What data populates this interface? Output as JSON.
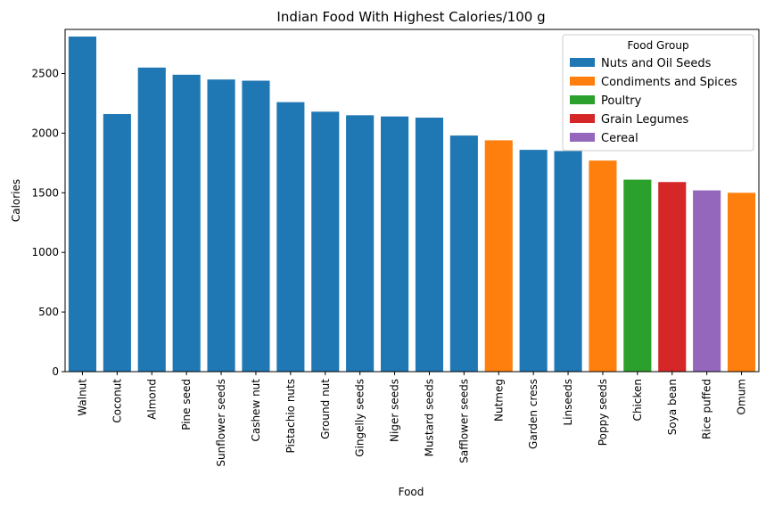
{
  "chart_data": {
    "type": "bar",
    "title": "Indian Food With Highest Calories/100 g",
    "xlabel": "Food",
    "ylabel": "Calories",
    "ylim": [
      0,
      2870
    ],
    "yticks": [
      0,
      500,
      1000,
      1500,
      2000,
      2500
    ],
    "grid": false,
    "legend_placement": "top-right",
    "legend_title": "Food Group",
    "groups": [
      {
        "name": "Nuts and Oil Seeds",
        "color": "#1f77b4"
      },
      {
        "name": "Condiments and Spices",
        "color": "#ff7f0e"
      },
      {
        "name": "Poultry",
        "color": "#2ca02c"
      },
      {
        "name": "Grain Legumes",
        "color": "#d62728"
      },
      {
        "name": "Cereal",
        "color": "#9467bd"
      }
    ],
    "categories": [
      "Walnut",
      "Coconut",
      "Almond",
      "Pine seed",
      "Sunflower seeds",
      "Cashew nut",
      "Pistachio nuts",
      "Ground nut",
      "Gingelly seeds",
      "Niger seeds",
      "Mustard seeds",
      "Safflower seeds",
      "Nutmeg",
      "Garden cress",
      "Linseeds",
      "Poppy seeds",
      "Chicken",
      "Soya bean",
      "Rice puffed",
      "Omum"
    ],
    "values": [
      2810,
      2160,
      2550,
      2490,
      2450,
      2440,
      2260,
      2180,
      2150,
      2140,
      2130,
      1980,
      1940,
      1860,
      1850,
      1770,
      1610,
      1590,
      1520,
      1500
    ],
    "group_of": [
      "Nuts and Oil Seeds",
      "Nuts and Oil Seeds",
      "Nuts and Oil Seeds",
      "Nuts and Oil Seeds",
      "Nuts and Oil Seeds",
      "Nuts and Oil Seeds",
      "Nuts and Oil Seeds",
      "Nuts and Oil Seeds",
      "Nuts and Oil Seeds",
      "Nuts and Oil Seeds",
      "Nuts and Oil Seeds",
      "Nuts and Oil Seeds",
      "Condiments and Spices",
      "Nuts and Oil Seeds",
      "Nuts and Oil Seeds",
      "Condiments and Spices",
      "Poultry",
      "Grain Legumes",
      "Cereal",
      "Condiments and Spices"
    ]
  }
}
